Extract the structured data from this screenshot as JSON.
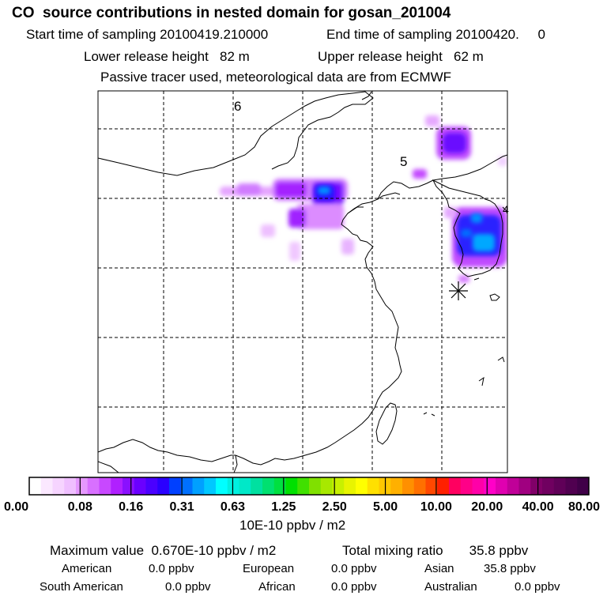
{
  "header": {
    "title": "CO  source contributions in nested domain for gosan_201004",
    "start_label": "Start time of sampling 20100419.210000",
    "end_label": "End time of sampling 20100420.     0",
    "lower_release": "Lower release height   82 m",
    "upper_release": "Upper release height   62 m",
    "tracer_note": "Passive tracer used, meteorological data are from ECMWF"
  },
  "map": {
    "grid_labels": [
      "6",
      "5",
      "4"
    ],
    "receptor_marker": "star-asterisk",
    "plume_colors": [
      "#e2a0ff",
      "#c050ff",
      "#9018ff",
      "#2b00ff",
      "#0068ff",
      "#00d0ff"
    ]
  },
  "colorbar": {
    "tick_labels": [
      "0.00",
      "0.08",
      "0.16",
      "0.31",
      "0.63",
      "1.25",
      "2.50",
      "5.00",
      "10.00",
      "20.00",
      "40.00",
      "80.00"
    ],
    "unit_label": "10E-10 ppbv / m2",
    "colors": [
      "#ffffff",
      "#fbe8ff",
      "#f6d4ff",
      "#efbfff",
      "#e598ff",
      "#d870ff",
      "#c848ff",
      "#b020ff",
      "#8a10ff",
      "#6a00ff",
      "#4a00ff",
      "#2a00ff",
      "#0040ff",
      "#0070ff",
      "#00a0ff",
      "#00c8ff",
      "#00ffff",
      "#00f0e0",
      "#00e8c8",
      "#00e0a0",
      "#00e070",
      "#00e040",
      "#00e000",
      "#40e000",
      "#80e000",
      "#a8e800",
      "#c8f000",
      "#e8f400",
      "#ffff00",
      "#ffe000",
      "#ffc800",
      "#ffb000",
      "#ff9000",
      "#ff7000",
      "#ff4800",
      "#ff2000",
      "#ff0060",
      "#ff0088",
      "#ff00a8",
      "#ff00c8",
      "#e000b0",
      "#c00098",
      "#a00080",
      "#800068",
      "#700060",
      "#600058",
      "#500050",
      "#400048"
    ]
  },
  "footer": {
    "max_value": "Maximum value  0.670E-10 ppbv / m2",
    "total_mixing": "Total mixing ratio       35.8 ppbv",
    "american": "American",
    "american_val": "0.0 ppbv",
    "european": "European",
    "european_val": "0.0 ppbv",
    "asian": "Asian",
    "asian_val": "35.8 ppbv",
    "south_american": "South American",
    "south_american_val": "0.0 ppbv",
    "african": "African",
    "african_val": "0.0 ppbv",
    "australian": "Australian",
    "australian_val": "0.0 ppbv"
  }
}
